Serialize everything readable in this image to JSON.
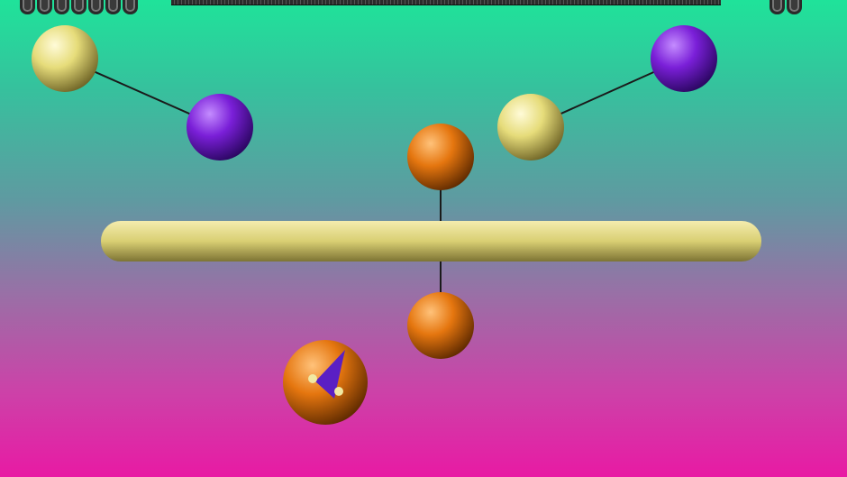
{
  "hud": {
    "score_digits": 7,
    "lives_digits": 2
  },
  "colors": {
    "yellow_ball": "#e6dc7a",
    "purple_ball": "#7a1fd8",
    "orange_ball": "#e5760f",
    "bar": "#d9cf73",
    "link": "#1a1a1a"
  },
  "objects": {
    "yellow_ball": "yellow-ball",
    "purple_ball": "purple-ball",
    "orange_ball": "orange-ball",
    "player_ball": "player-ball"
  }
}
